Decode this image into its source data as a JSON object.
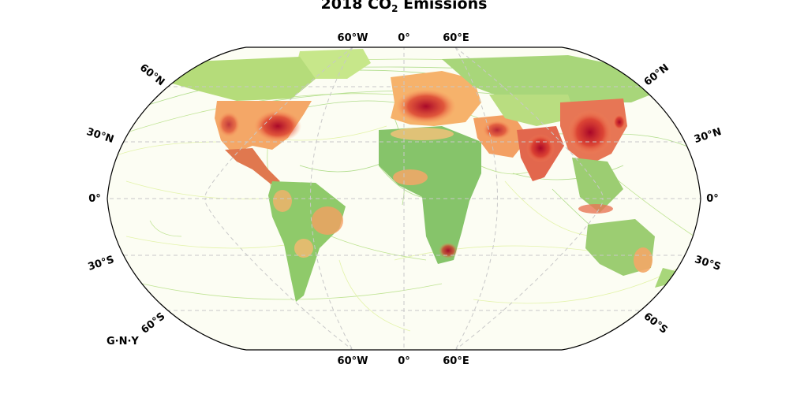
{
  "map": {
    "title_prefix": "2018 CO",
    "title_subscript": "2",
    "title_suffix": " Emissions",
    "credit": "G·N·Y",
    "projection": "robinson",
    "graticule": "dashed",
    "longitude_labels": [
      "60°W",
      "0°",
      "60°E"
    ],
    "latitude_labels_left": [
      "60°N",
      "30°N",
      "0°",
      "30°S",
      "60°S"
    ],
    "latitude_labels_right": [
      "60°N",
      "30°N",
      "0°",
      "30°S",
      "60°S"
    ],
    "colormap": "RdYlGn_r",
    "colors": {
      "low": "#1a9850",
      "low_mid": "#91cf60",
      "mid": "#fee08b",
      "high_mid": "#fc8d59",
      "high": "#d73027",
      "peak": "#a50026"
    },
    "regions": [
      {
        "name": "north-america",
        "level": "high"
      },
      {
        "name": "europe",
        "level": "high"
      },
      {
        "name": "east-asia",
        "level": "peak"
      },
      {
        "name": "india",
        "level": "high"
      },
      {
        "name": "middle-east",
        "level": "high_mid"
      },
      {
        "name": "south-america",
        "level": "low_mid"
      },
      {
        "name": "africa",
        "level": "low_mid"
      },
      {
        "name": "australia",
        "level": "low_mid"
      },
      {
        "name": "russia",
        "level": "low_mid"
      }
    ]
  }
}
